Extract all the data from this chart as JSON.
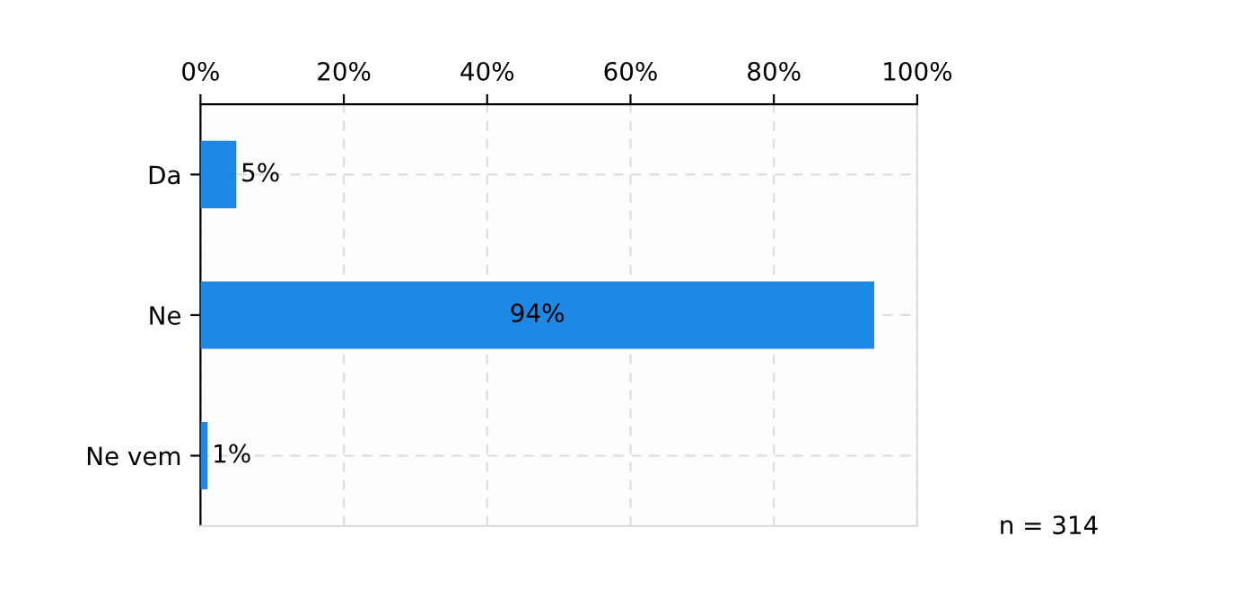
{
  "chart_data": {
    "type": "bar",
    "orientation": "horizontal",
    "categories": [
      "Da",
      "Ne",
      "Ne vem"
    ],
    "values": [
      5,
      94,
      1
    ],
    "value_labels": [
      "5%",
      "94%",
      "1%"
    ],
    "color": "#1e88e5",
    "xlim": [
      0,
      100
    ],
    "xticks": [
      {
        "value": 0,
        "label": "0%"
      },
      {
        "value": 20,
        "label": "20%"
      },
      {
        "value": 40,
        "label": "40%"
      },
      {
        "value": 60,
        "label": "60%"
      },
      {
        "value": 80,
        "label": "80%"
      },
      {
        "value": 100,
        "label": "100%"
      }
    ],
    "grid": true,
    "annotations": [
      "n = 314"
    ]
  }
}
